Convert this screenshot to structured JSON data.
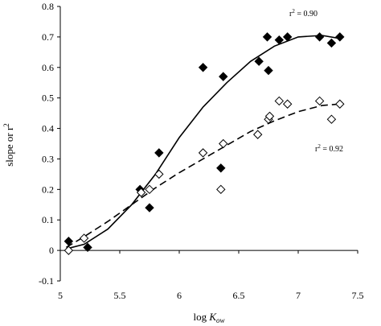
{
  "chart_data": {
    "type": "scatter",
    "title": "",
    "xlabel": {
      "prefix": "log ",
      "var": "K",
      "sub": "ow"
    },
    "ylabel": {
      "base": "slope or r",
      "sup": "2"
    },
    "xlim": [
      5,
      7.5
    ],
    "ylim": [
      -0.1,
      0.8
    ],
    "xticks": [
      5,
      5.5,
      6,
      6.5,
      7,
      7.5
    ],
    "yticks": [
      -0.1,
      0,
      0.1,
      0.2,
      0.3,
      0.4,
      0.5,
      0.6,
      0.7,
      0.8
    ],
    "grid": false,
    "series": [
      {
        "marker": "filled-diamond",
        "line": "solid",
        "points": [
          [
            5.07,
            0.03
          ],
          [
            5.23,
            0.01
          ],
          [
            5.67,
            0.2
          ],
          [
            5.75,
            0.14
          ],
          [
            5.83,
            0.32
          ],
          [
            6.2,
            0.6
          ],
          [
            6.35,
            0.27
          ],
          [
            6.37,
            0.57
          ],
          [
            6.67,
            0.62
          ],
          [
            6.74,
            0.7
          ],
          [
            6.75,
            0.59
          ],
          [
            6.84,
            0.69
          ],
          [
            6.91,
            0.7
          ],
          [
            7.18,
            0.7
          ],
          [
            7.28,
            0.68
          ],
          [
            7.35,
            0.7
          ]
        ],
        "fit": [
          [
            5.05,
            0.005
          ],
          [
            5.2,
            0.02
          ],
          [
            5.4,
            0.07
          ],
          [
            5.6,
            0.15
          ],
          [
            5.8,
            0.25
          ],
          [
            6.0,
            0.37
          ],
          [
            6.2,
            0.47
          ],
          [
            6.4,
            0.55
          ],
          [
            6.6,
            0.62
          ],
          [
            6.8,
            0.67
          ],
          [
            7.0,
            0.7
          ],
          [
            7.2,
            0.705
          ],
          [
            7.35,
            0.695
          ]
        ],
        "r2_label": {
          "base": "r",
          "sup": "2",
          "value": " = 0.90"
        }
      },
      {
        "marker": "open-diamond",
        "line": "dashed",
        "points": [
          [
            5.07,
            0.0
          ],
          [
            5.2,
            0.04
          ],
          [
            5.68,
            0.19
          ],
          [
            5.75,
            0.2
          ],
          [
            5.83,
            0.25
          ],
          [
            6.2,
            0.32
          ],
          [
            6.35,
            0.2
          ],
          [
            6.37,
            0.35
          ],
          [
            6.66,
            0.38
          ],
          [
            6.75,
            0.43
          ],
          [
            6.76,
            0.44
          ],
          [
            6.84,
            0.49
          ],
          [
            6.91,
            0.48
          ],
          [
            7.18,
            0.49
          ],
          [
            7.28,
            0.43
          ],
          [
            7.35,
            0.48
          ]
        ],
        "fit": [
          [
            5.05,
            0.01
          ],
          [
            5.2,
            0.045
          ],
          [
            5.4,
            0.095
          ],
          [
            5.6,
            0.15
          ],
          [
            5.8,
            0.205
          ],
          [
            6.0,
            0.255
          ],
          [
            6.2,
            0.3
          ],
          [
            6.4,
            0.345
          ],
          [
            6.6,
            0.39
          ],
          [
            6.8,
            0.425
          ],
          [
            7.0,
            0.455
          ],
          [
            7.2,
            0.475
          ],
          [
            7.35,
            0.48
          ]
        ],
        "r2_label": {
          "base": "r",
          "sup": "2",
          "value": " = 0.92"
        }
      }
    ]
  }
}
